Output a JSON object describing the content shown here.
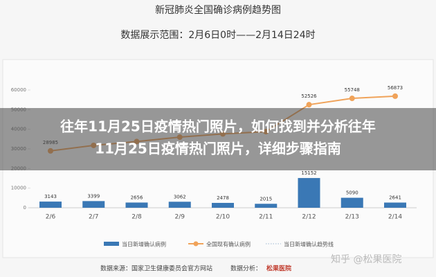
{
  "chart_data": {
    "type": "bar-line",
    "title": "新冠肺炎全国确诊病例趋势图",
    "subtitle": "数据展示范围：2月6日0时——2月14日24时",
    "categories": [
      "2/6",
      "2/7",
      "2/8",
      "2/9",
      "2/10",
      "2/11",
      "2/12",
      "2/13",
      "2/14"
    ],
    "series": [
      {
        "name": "当日新增确认病例",
        "color": "#3a78b5",
        "kind": "bar",
        "values": [
          3143,
          3399,
          2656,
          3062,
          2478,
          2015,
          15152,
          5090,
          2641
        ]
      },
      {
        "name": "全国现有确认病例",
        "color": "#f0a35a",
        "kind": "line",
        "values": [
          28985,
          31774,
          33738,
          35982,
          37626,
          38800,
          52526,
          55748,
          56873
        ],
        "value_labels": [
          "28985",
          null,
          null,
          null,
          null,
          null,
          "52526",
          "55748",
          "56873"
        ]
      },
      {
        "name": "当日新增确认趋势线",
        "color": "#9bb5d0",
        "kind": "trend"
      }
    ],
    "ylim": [
      0,
      60000
    ],
    "yticks": [
      0,
      10000,
      20000,
      30000,
      40000,
      50000,
      60000
    ],
    "grid": false
  },
  "overlay": {
    "lines": [
      "往年11月25日疫情热门照片，如何找到并分析往年",
      "11月25日疫情热门照片，详细步骤指南"
    ]
  },
  "footer": {
    "source": "数据来源：国家卫生健康委员会官方网站",
    "analysis": "数据分析：",
    "logo": "松果医院",
    "watermark": "知乎 @松果医院"
  }
}
